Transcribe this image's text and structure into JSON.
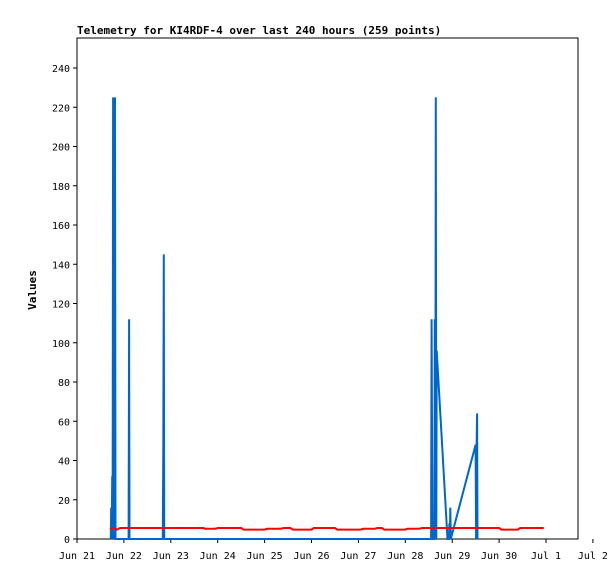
{
  "chart_data": {
    "type": "line",
    "title": "Telemetry for KI4RDF-4 over last 240 hours (259 points)",
    "xlabel": "",
    "ylabel": "Values",
    "x_ticks": [
      "Jun 21",
      "Jun 22",
      "Jun 23",
      "Jun 24",
      "Jun 25",
      "Jun 26",
      "Jun 27",
      "Jun 28",
      "Jun 29",
      "Jun 30",
      "Jul 1",
      "Jul 2"
    ],
    "xlim_days": [
      0,
      11
    ],
    "ylim": [
      0,
      255
    ],
    "y_ticks": [
      0,
      20,
      40,
      60,
      80,
      100,
      120,
      140,
      160,
      180,
      200,
      220,
      240
    ],
    "grid": false,
    "series": [
      {
        "color": "#0066cc",
        "points": [
          [
            0.72,
            0
          ],
          [
            0.73,
            16
          ],
          [
            0.74,
            0
          ],
          [
            0.75,
            32
          ],
          [
            0.76,
            0
          ],
          [
            0.77,
            225
          ],
          [
            0.78,
            0
          ],
          [
            0.79,
            225
          ],
          [
            0.8,
            0
          ],
          [
            0.81,
            225
          ],
          [
            0.82,
            0
          ],
          [
            1.1,
            0
          ],
          [
            1.11,
            112
          ],
          [
            1.12,
            0
          ],
          [
            1.83,
            0
          ],
          [
            1.84,
            48
          ],
          [
            1.85,
            145
          ],
          [
            1.86,
            0
          ],
          [
            7.55,
            0
          ],
          [
            7.56,
            112
          ],
          [
            7.57,
            56
          ],
          [
            7.58,
            0
          ],
          [
            7.62,
            0
          ],
          [
            7.63,
            112
          ],
          [
            7.64,
            0
          ],
          [
            7.65,
            225
          ],
          [
            7.66,
            0
          ],
          [
            7.67,
            96
          ],
          [
            7.9,
            0
          ],
          [
            7.93,
            0
          ],
          [
            7.94,
            8
          ],
          [
            7.95,
            0
          ],
          [
            7.96,
            16
          ],
          [
            7.97,
            0
          ],
          [
            8.5,
            48
          ],
          [
            8.51,
            0
          ],
          [
            8.52,
            48
          ],
          [
            8.53,
            64
          ],
          [
            8.54,
            0
          ]
        ]
      },
      {
        "color": "#ff0000",
        "points": [
          [
            0.7,
            5.2
          ],
          [
            0.8,
            5.6
          ],
          [
            0.85,
            4.8
          ],
          [
            0.92,
            5.6
          ],
          [
            2.7,
            5.6
          ],
          [
            2.72,
            5.2
          ],
          [
            2.95,
            5.2
          ],
          [
            3.0,
            5.6
          ],
          [
            3.5,
            5.6
          ],
          [
            3.55,
            4.8
          ],
          [
            4.0,
            4.8
          ],
          [
            4.05,
            5.2
          ],
          [
            4.35,
            5.2
          ],
          [
            4.4,
            5.6
          ],
          [
            4.55,
            5.6
          ],
          [
            4.6,
            4.8
          ],
          [
            5.0,
            4.8
          ],
          [
            5.05,
            5.6
          ],
          [
            5.5,
            5.6
          ],
          [
            5.55,
            4.8
          ],
          [
            6.05,
            4.8
          ],
          [
            6.1,
            5.2
          ],
          [
            6.35,
            5.2
          ],
          [
            6.4,
            5.6
          ],
          [
            6.5,
            5.6
          ],
          [
            6.55,
            4.8
          ],
          [
            7.0,
            4.8
          ],
          [
            7.05,
            5.2
          ],
          [
            7.3,
            5.2
          ],
          [
            7.35,
            5.6
          ],
          [
            9.0,
            5.6
          ],
          [
            9.05,
            4.8
          ],
          [
            9.4,
            4.8
          ],
          [
            9.45,
            5.6
          ],
          [
            9.95,
            5.6
          ]
        ]
      }
    ]
  }
}
